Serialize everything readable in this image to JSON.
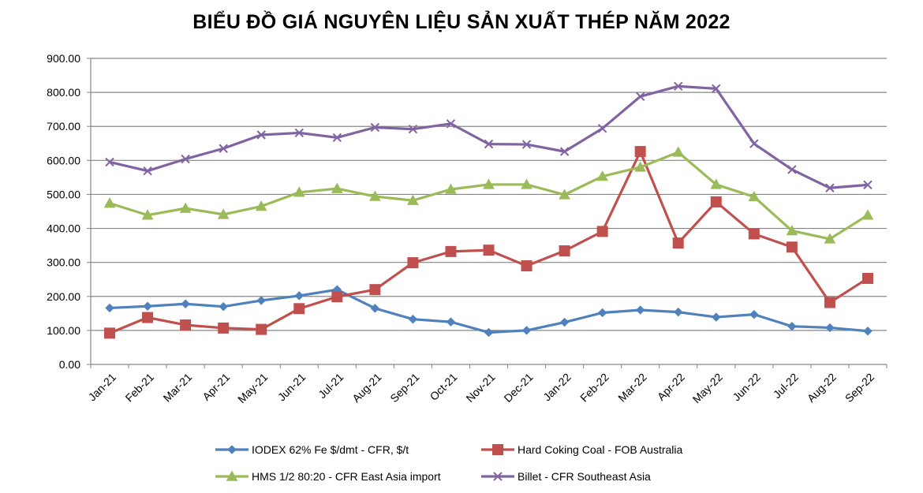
{
  "chart_data": {
    "type": "line",
    "title": "BIỂU ĐỒ GIÁ NGUYÊN LIỆU SẢN XUẤT THÉP NĂM 2022",
    "xlabel": "",
    "ylabel": "",
    "ylim": [
      0,
      900
    ],
    "yticks": [
      "0.00",
      "100.00",
      "200.00",
      "300.00",
      "400.00",
      "500.00",
      "600.00",
      "700.00",
      "800.00",
      "900.00"
    ],
    "grid": "horizontal",
    "legend": "bottom",
    "categories": [
      "Jan-21",
      "Feb-21",
      "Mar-21",
      "Apr-21",
      "May-21",
      "Jun-21",
      "Jul-21",
      "Aug-21",
      "Sep-21",
      "Oct-21",
      "Nov-21",
      "Dec-21",
      "Jan-22",
      "Feb-22",
      "Mar-22",
      "Apr-22",
      "May-22",
      "Jun-22",
      "Jul-22",
      "Aug-22",
      "Sep-22"
    ],
    "series": [
      {
        "name": "IODEX 62% Fe $/dmt - CFR, $/t",
        "color": "#4F81BD",
        "marker": "diamond",
        "values": [
          166,
          171,
          178,
          170,
          188,
          202,
          220,
          165,
          133,
          125,
          94,
          100,
          124,
          152,
          160,
          154,
          139,
          147,
          112,
          108,
          98
        ]
      },
      {
        "name": "Hard Coking Coal - FOB Australia",
        "color": "#C0504D",
        "marker": "square",
        "values": [
          92,
          138,
          116,
          107,
          103,
          164,
          199,
          220,
          299,
          332,
          336,
          290,
          334,
          391,
          626,
          357,
          478,
          384,
          345,
          182,
          253
        ]
      },
      {
        "name": "HMS 1/2 80:20 - CFR East Asia import",
        "color": "#9BBB59",
        "marker": "triangle",
        "values": [
          474,
          439,
          459,
          441,
          465,
          506,
          517,
          494,
          482,
          515,
          529,
          529,
          499,
          553,
          580,
          624,
          529,
          493,
          393,
          369,
          439
        ]
      },
      {
        "name": "Billet - CFR Southeast Asia",
        "color": "#8064A2",
        "marker": "x",
        "values": [
          595,
          569,
          604,
          635,
          675,
          681,
          667,
          697,
          692,
          708,
          648,
          647,
          626,
          694,
          788,
          818,
          811,
          649,
          573,
          519,
          528
        ]
      }
    ]
  }
}
